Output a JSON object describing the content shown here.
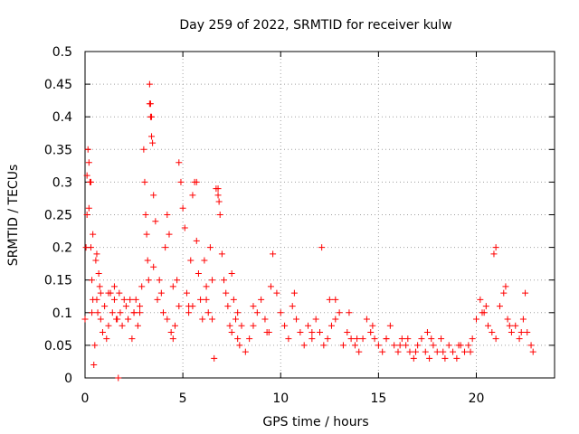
{
  "chart_data": {
    "type": "scatter",
    "title": "Day 259 of 2022, SRMTID for receiver kulw",
    "xlabel": "GPS time / hours",
    "ylabel": "SRMTID / TECUs",
    "xlim": [
      0,
      24
    ],
    "ylim": [
      0,
      0.5
    ],
    "xticks": [
      0,
      5,
      10,
      15,
      20
    ],
    "xtick_labels": [
      "0",
      "5",
      "10",
      "15",
      "20"
    ],
    "yticks": [
      0,
      0.05,
      0.1,
      0.15,
      0.2,
      0.25,
      0.3,
      0.35,
      0.4,
      0.45,
      0.5
    ],
    "ytick_labels": [
      "0",
      "0.05",
      "0.1",
      "0.15",
      "0.2",
      "0.25",
      "0.3",
      "0.35",
      "0.4",
      "0.45",
      "0.5"
    ],
    "grid": true,
    "marker": "+",
    "color": "#ff0000",
    "series": [
      {
        "name": "SRMTID",
        "x": [
          0.0,
          0.05,
          0.1,
          0.15,
          0.2,
          0.25,
          0.3,
          0.35,
          0.4,
          0.45,
          0.5,
          0.55,
          0.6,
          0.65,
          0.7,
          0.75,
          0.8,
          0.9,
          1.0,
          1.1,
          1.2,
          1.3,
          1.4,
          1.5,
          1.6,
          1.7,
          1.75,
          1.8,
          1.9,
          2.0,
          2.1,
          2.2,
          2.3,
          2.4,
          2.5,
          2.6,
          2.7,
          2.8,
          2.9,
          3.0,
          3.05,
          3.1,
          3.15,
          3.2,
          3.25,
          3.3,
          3.35,
          3.4,
          3.45,
          3.5,
          3.6,
          3.7,
          3.8,
          3.9,
          4.0,
          4.1,
          4.2,
          4.3,
          4.4,
          4.5,
          4.6,
          4.7,
          4.8,
          4.9,
          5.0,
          5.1,
          5.2,
          5.3,
          5.4,
          5.5,
          5.6,
          5.7,
          5.8,
          5.9,
          6.0,
          6.1,
          6.2,
          6.3,
          6.4,
          6.5,
          6.6,
          6.7,
          6.8,
          6.9,
          7.0,
          7.1,
          7.2,
          7.3,
          7.4,
          7.5,
          7.6,
          7.7,
          7.8,
          7.9,
          8.0,
          8.2,
          8.4,
          8.6,
          8.8,
          9.0,
          9.2,
          9.4,
          9.6,
          9.8,
          10.0,
          10.2,
          10.4,
          10.6,
          10.8,
          11.0,
          11.2,
          11.4,
          11.6,
          11.8,
          12.0,
          12.2,
          12.4,
          12.6,
          12.8,
          13.0,
          13.2,
          13.4,
          13.6,
          13.8,
          14.0,
          14.2,
          14.4,
          14.6,
          14.8,
          15.0,
          15.2,
          15.4,
          15.6,
          15.8,
          16.0,
          16.2,
          16.4,
          16.6,
          16.8,
          17.0,
          17.2,
          17.4,
          17.6,
          17.8,
          18.0,
          18.2,
          18.4,
          18.6,
          18.8,
          19.0,
          19.2,
          19.4,
          19.6,
          19.8,
          20.0,
          20.2,
          20.4,
          20.6,
          20.8,
          21.0,
          21.2,
          21.4,
          21.6,
          21.8,
          22.0,
          22.2,
          22.4,
          22.6,
          22.8,
          22.9,
          0.2,
          0.4,
          0.6,
          0.8,
          1.5,
          2.5,
          3.5,
          4.5,
          5.5,
          6.5,
          7.5,
          9.5,
          12.5,
          13.5,
          16.5,
          17.5,
          20.5,
          21.5,
          22.5,
          0.1,
          0.3,
          3.3,
          3.35,
          3.4,
          5.7,
          6.8,
          6.85,
          12.1,
          20.9,
          21.0,
          1.2,
          1.65,
          0.35,
          2.2,
          2.8,
          4.2,
          4.8,
          5.3,
          6.2,
          7.8,
          8.6,
          9.3,
          10.7,
          11.6,
          12.8,
          13.9,
          14.7,
          15.4,
          16.1,
          16.9,
          17.7,
          18.3,
          19.1,
          19.7,
          20.3,
          21.7,
          22.3
        ],
        "y": [
          0.09,
          0.2,
          0.25,
          0.35,
          0.33,
          0.3,
          0.2,
          0.15,
          0.12,
          0.02,
          0.05,
          0.18,
          0.12,
          0.1,
          0.16,
          0.14,
          0.09,
          0.07,
          0.11,
          0.06,
          0.08,
          0.13,
          0.1,
          0.12,
          0.09,
          0.0,
          0.13,
          0.1,
          0.08,
          0.12,
          0.11,
          0.09,
          0.12,
          0.06,
          0.1,
          0.12,
          0.08,
          0.11,
          0.14,
          0.35,
          0.3,
          0.25,
          0.22,
          0.18,
          0.15,
          0.45,
          0.42,
          0.4,
          0.36,
          0.28,
          0.24,
          0.12,
          0.15,
          0.13,
          0.1,
          0.2,
          0.25,
          0.22,
          0.07,
          0.06,
          0.08,
          0.15,
          0.33,
          0.3,
          0.26,
          0.23,
          0.13,
          0.11,
          0.18,
          0.28,
          0.3,
          0.21,
          0.16,
          0.12,
          0.09,
          0.18,
          0.14,
          0.1,
          0.2,
          0.09,
          0.03,
          0.29,
          0.28,
          0.25,
          0.19,
          0.15,
          0.13,
          0.11,
          0.08,
          0.07,
          0.12,
          0.09,
          0.06,
          0.05,
          0.08,
          0.04,
          0.06,
          0.08,
          0.1,
          0.12,
          0.09,
          0.07,
          0.19,
          0.13,
          0.1,
          0.08,
          0.06,
          0.11,
          0.09,
          0.07,
          0.05,
          0.08,
          0.06,
          0.09,
          0.07,
          0.05,
          0.06,
          0.08,
          0.09,
          0.1,
          0.05,
          0.07,
          0.06,
          0.05,
          0.04,
          0.06,
          0.09,
          0.07,
          0.06,
          0.05,
          0.04,
          0.06,
          0.08,
          0.05,
          0.04,
          0.06,
          0.05,
          0.04,
          0.03,
          0.05,
          0.06,
          0.04,
          0.03,
          0.05,
          0.04,
          0.06,
          0.03,
          0.05,
          0.04,
          0.03,
          0.05,
          0.04,
          0.05,
          0.06,
          0.09,
          0.12,
          0.1,
          0.08,
          0.07,
          0.06,
          0.11,
          0.13,
          0.09,
          0.07,
          0.08,
          0.06,
          0.09,
          0.07,
          0.05,
          0.04,
          0.26,
          0.22,
          0.19,
          0.13,
          0.14,
          0.1,
          0.17,
          0.14,
          0.11,
          0.15,
          0.16,
          0.14,
          0.12,
          0.1,
          0.06,
          0.07,
          0.11,
          0.14,
          0.13,
          0.31,
          0.3,
          0.42,
          0.4,
          0.37,
          0.3,
          0.29,
          0.27,
          0.2,
          0.19,
          0.2,
          0.13,
          0.09,
          0.1,
          0.09,
          0.1,
          0.09,
          0.11,
          0.1,
          0.12,
          0.1,
          0.11,
          0.07,
          0.13,
          0.07,
          0.12,
          0.06,
          0.08,
          0.06,
          0.05,
          0.04,
          0.06,
          0.04,
          0.05,
          0.04,
          0.1,
          0.08,
          0.07
        ]
      }
    ]
  }
}
